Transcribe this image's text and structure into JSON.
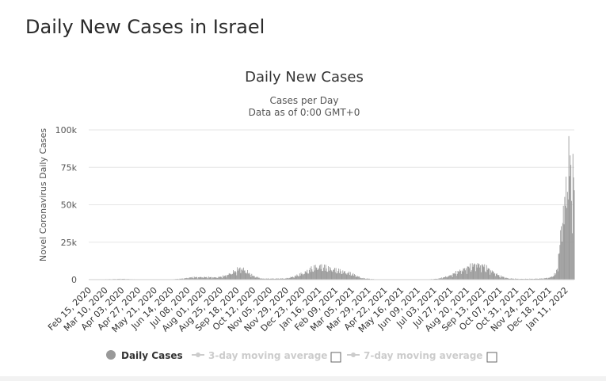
{
  "page": {
    "title": "Daily New Cases in Israel"
  },
  "chart_data": {
    "type": "bar",
    "title": "Daily New Cases",
    "subtitle_lines": [
      "Cases per Day",
      "Data as of 0:00 GMT+0"
    ],
    "ylabel": "Novel Coronavirus Daily Cases",
    "xlabel": "",
    "ylim": [
      0,
      100000
    ],
    "y_ticks": [
      0,
      25000,
      50000,
      75000,
      100000
    ],
    "y_tick_labels": [
      "0",
      "25k",
      "50k",
      "75k",
      "100k"
    ],
    "x_start": "2020-02-15",
    "x_end": "2022-01-24",
    "x_tick_labels": [
      "Feb 15, 2020",
      "Mar 10, 2020",
      "Apr 03, 2020",
      "Apr 27, 2020",
      "May 21, 2020",
      "Jun 14, 2020",
      "Jul 08, 2020",
      "Aug 01, 2020",
      "Aug 25, 2020",
      "Sep 18, 2020",
      "Oct 12, 2020",
      "Nov 05, 2020",
      "Nov 29, 2020",
      "Dec 23, 2020",
      "Jan 16, 2021",
      "Feb 09, 2021",
      "Mar 05, 2021",
      "Mar 29, 2021",
      "Apr 22, 2021",
      "May 16, 2021",
      "Jun 09, 2021",
      "Jul 03, 2021",
      "Jul 27, 2021",
      "Aug 20, 2021",
      "Sep 13, 2021",
      "Oct 07, 2021",
      "Oct 31, 2021",
      "Nov 24, 2021",
      "Dec 18, 2021",
      "Jan 11, 2022"
    ],
    "series": [
      {
        "name": "Daily Cases",
        "color": "#999999",
        "points": [
          [
            "2020-02-15",
            0
          ],
          [
            "2020-03-25",
            400
          ],
          [
            "2020-04-05",
            500
          ],
          [
            "2020-04-20",
            250
          ],
          [
            "2020-05-10",
            50
          ],
          [
            "2020-06-01",
            50
          ],
          [
            "2020-06-15",
            200
          ],
          [
            "2020-07-01",
            700
          ],
          [
            "2020-07-15",
            1600
          ],
          [
            "2020-08-01",
            1700
          ],
          [
            "2020-08-20",
            1500
          ],
          [
            "2020-09-01",
            2500
          ],
          [
            "2020-09-15",
            5500
          ],
          [
            "2020-09-24",
            8000
          ],
          [
            "2020-10-01",
            6000
          ],
          [
            "2020-10-12",
            2500
          ],
          [
            "2020-10-25",
            700
          ],
          [
            "2020-11-10",
            700
          ],
          [
            "2020-11-29",
            800
          ],
          [
            "2020-12-10",
            2000
          ],
          [
            "2020-12-25",
            4500
          ],
          [
            "2021-01-08",
            8000
          ],
          [
            "2021-01-18",
            9000
          ],
          [
            "2021-02-01",
            7500
          ],
          [
            "2021-02-15",
            6000
          ],
          [
            "2021-03-05",
            4000
          ],
          [
            "2021-03-20",
            1000
          ],
          [
            "2021-04-10",
            150
          ],
          [
            "2021-05-01",
            50
          ],
          [
            "2021-06-10",
            20
          ],
          [
            "2021-06-25",
            200
          ],
          [
            "2021-07-10",
            700
          ],
          [
            "2021-07-25",
            2500
          ],
          [
            "2021-08-10",
            6000
          ],
          [
            "2021-08-25",
            9000
          ],
          [
            "2021-09-02",
            10500
          ],
          [
            "2021-09-13",
            9500
          ],
          [
            "2021-09-25",
            6000
          ],
          [
            "2021-10-07",
            2500
          ],
          [
            "2021-10-20",
            800
          ],
          [
            "2021-11-05",
            500
          ],
          [
            "2021-11-24",
            550
          ],
          [
            "2021-12-10",
            800
          ],
          [
            "2021-12-20",
            1500
          ],
          [
            "2021-12-28",
            4000
          ],
          [
            "2022-01-01",
            14000
          ],
          [
            "2022-01-04",
            30000
          ],
          [
            "2022-01-07",
            48000
          ],
          [
            "2022-01-10",
            45000
          ],
          [
            "2022-01-12",
            68000
          ],
          [
            "2022-01-15",
            72000
          ],
          [
            "2022-01-17",
            80000
          ],
          [
            "2022-01-18",
            83000
          ],
          [
            "2022-01-19",
            75000
          ],
          [
            "2022-01-21",
            60000
          ],
          [
            "2022-01-22",
            72000
          ],
          [
            "2022-01-24",
            68000
          ]
        ]
      }
    ],
    "legend": {
      "placement": "bottom",
      "items": [
        {
          "label": "Daily Cases",
          "color": "#999999",
          "active": true
        },
        {
          "label": "3-day moving average",
          "color": "#cccccc",
          "active": false
        },
        {
          "label": "7-day moving average",
          "color": "#cccccc",
          "active": false
        }
      ]
    },
    "grid": true
  }
}
